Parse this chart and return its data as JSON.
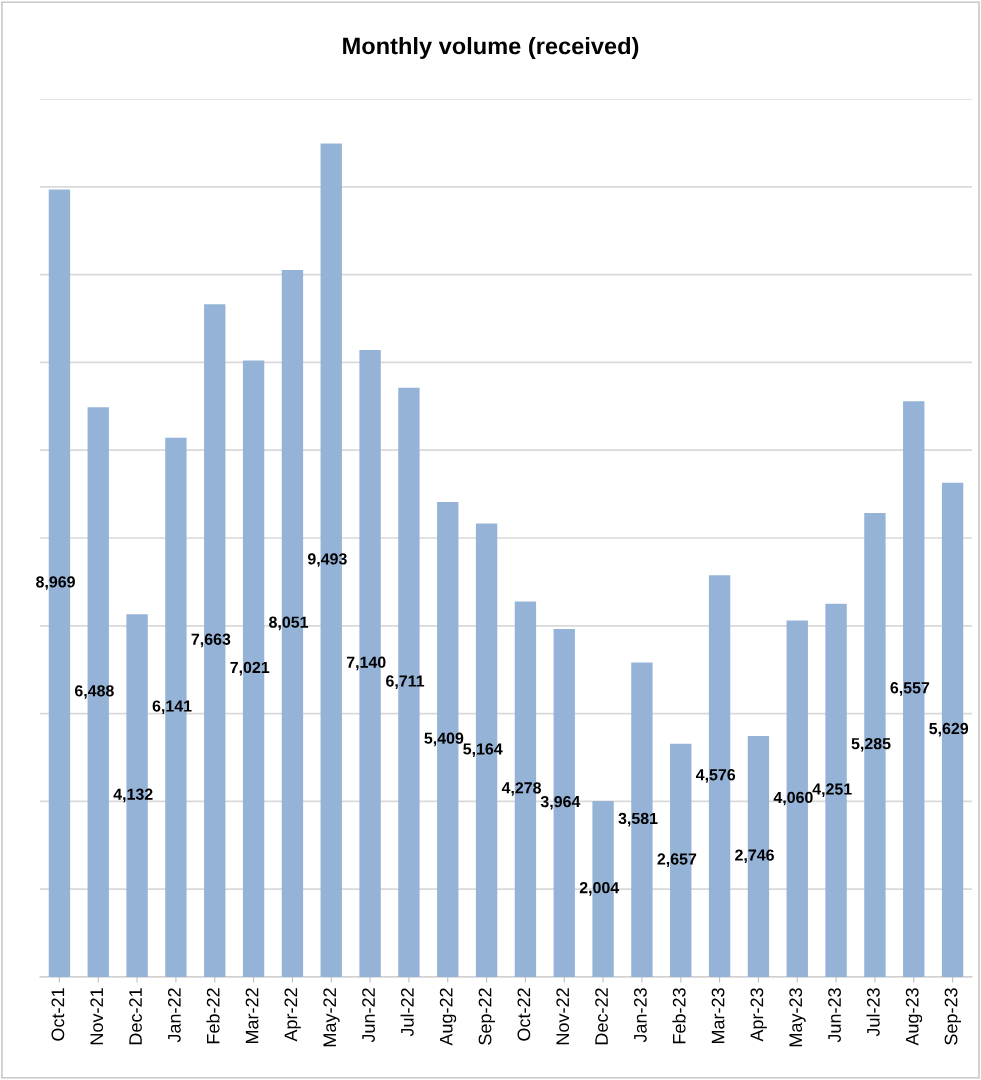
{
  "chart_data": {
    "type": "bar",
    "title": "Monthly volume (received)",
    "categories": [
      "Oct-21",
      "Nov-21",
      "Dec-21",
      "Jan-22",
      "Feb-22",
      "Mar-22",
      "Apr-22",
      "May-22",
      "Jun-22",
      "Jul-22",
      "Aug-22",
      "Sep-22",
      "Oct-22",
      "Nov-22",
      "Dec-22",
      "Jan-23",
      "Feb-23",
      "Mar-23",
      "Apr-23",
      "May-23",
      "Jun-23",
      "Jul-23",
      "Aug-23",
      "Sep-23"
    ],
    "values": [
      8969,
      6488,
      4132,
      6141,
      7663,
      7021,
      8051,
      9493,
      7140,
      6711,
      5409,
      5164,
      4278,
      3964,
      2004,
      3581,
      2657,
      4576,
      2746,
      4060,
      4251,
      5285,
      6557,
      5629
    ],
    "value_labels": [
      "8,969",
      "6,488",
      "4,132",
      "6,141",
      "7,663",
      "7,021",
      "8,051",
      "9,493",
      "7,140",
      "6,711",
      "5,409",
      "5,164",
      "4,278",
      "3,964",
      "2,004",
      "3,581",
      "2,657",
      "4,576",
      "2,746",
      "4,060",
      "4,251",
      "5,285",
      "6,557",
      "5,629"
    ],
    "color": "#95b3d7",
    "grid": "y",
    "tick_labels": "x"
  }
}
